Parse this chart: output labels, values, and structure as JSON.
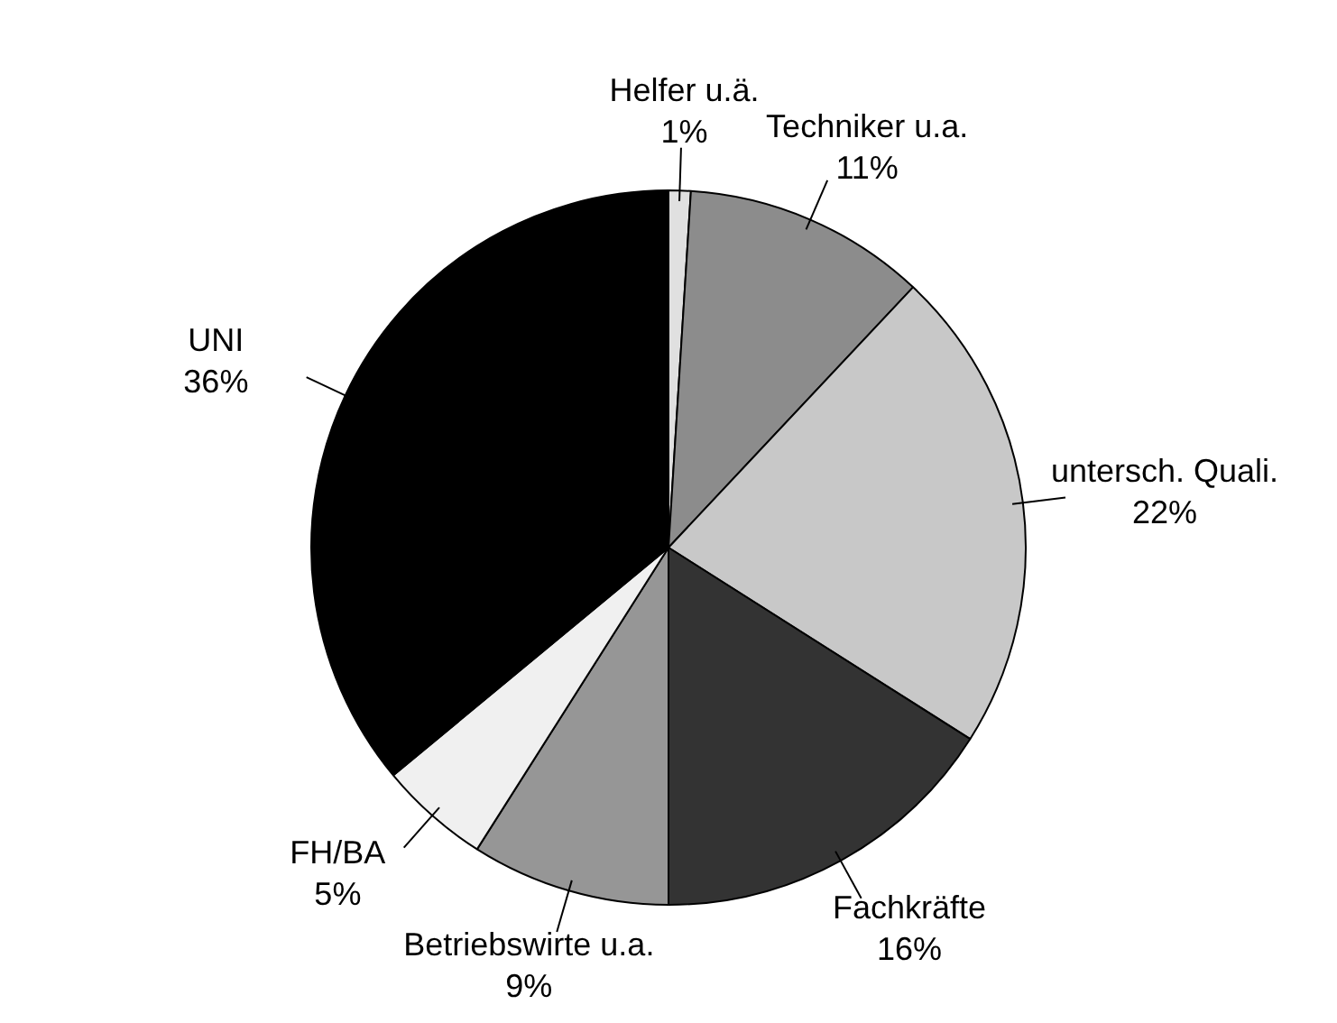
{
  "chart_data": {
    "type": "pie",
    "categories": [
      "Helfer u.ä.",
      "Techniker u.a.",
      "untersch. Quali.",
      "Fachkräfte",
      "Betriebswirte u.a.",
      "FH/BA",
      "UNI"
    ],
    "values": [
      1,
      11,
      22,
      16,
      9,
      5,
      36
    ],
    "value_labels": [
      "1%",
      "11%",
      "22%",
      "16%",
      "9%",
      "5%",
      "36%"
    ],
    "colors": [
      "#e0e0e0",
      "#8c8c8c",
      "#c8c8c8",
      "#333333",
      "#969696",
      "#f0f0f0",
      "#000000"
    ],
    "legend": false
  }
}
